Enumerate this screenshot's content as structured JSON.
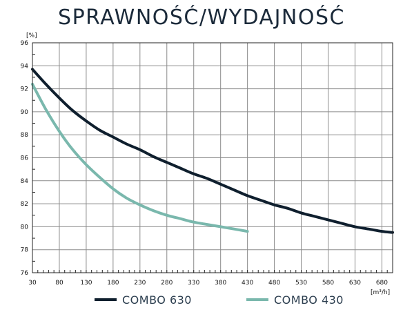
{
  "title": "SPRAWNOŚĆ/WYDAJNOŚĆ",
  "chart_data": {
    "type": "line",
    "ylabel": "[%]",
    "xlabel": "[m³/h]",
    "xlim": [
      30,
      700
    ],
    "ylim": [
      76,
      96
    ],
    "xticks": [
      30,
      80,
      130,
      180,
      230,
      280,
      330,
      380,
      430,
      480,
      530,
      580,
      630,
      680
    ],
    "xtick_labels": [
      "30",
      "80",
      "130",
      "180",
      "230",
      "280",
      "330",
      "380",
      "430",
      "480",
      "530",
      "580",
      "630",
      "680"
    ],
    "yticks": [
      76,
      78,
      80,
      82,
      84,
      86,
      88,
      90,
      92,
      94,
      96
    ],
    "ytick_labels": [
      "76",
      "78",
      "80",
      "82",
      "84",
      "86",
      "88",
      "90",
      "92",
      "94",
      "96"
    ],
    "grid": true,
    "legend_position": "bottom",
    "series": [
      {
        "name": "COMBO 630",
        "color": "#0f1f2e",
        "x": [
          30,
          55,
          80,
          105,
          130,
          155,
          180,
          205,
          230,
          255,
          280,
          305,
          330,
          355,
          380,
          405,
          430,
          455,
          480,
          505,
          530,
          555,
          580,
          605,
          630,
          655,
          680,
          700
        ],
        "y": [
          93.7,
          92.4,
          91.2,
          90.1,
          89.2,
          88.4,
          87.8,
          87.2,
          86.7,
          86.1,
          85.6,
          85.1,
          84.6,
          84.2,
          83.7,
          83.2,
          82.7,
          82.3,
          81.9,
          81.6,
          81.2,
          80.9,
          80.6,
          80.3,
          80.0,
          79.8,
          79.6,
          79.5
        ]
      },
      {
        "name": "COMBO 430",
        "color": "#7ab8ad",
        "x": [
          30,
          55,
          80,
          105,
          130,
          155,
          180,
          205,
          230,
          255,
          280,
          305,
          330,
          355,
          380,
          405,
          430
        ],
        "y": [
          92.4,
          90.2,
          88.3,
          86.7,
          85.4,
          84.3,
          83.3,
          82.5,
          81.9,
          81.4,
          81.0,
          80.7,
          80.4,
          80.2,
          80.0,
          79.8,
          79.6
        ]
      }
    ]
  }
}
